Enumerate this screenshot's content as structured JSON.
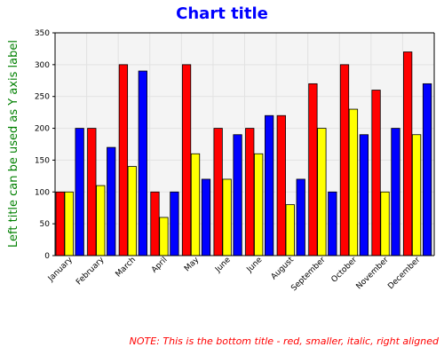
{
  "chart_data": {
    "type": "bar",
    "title": "Chart title",
    "ylabel": "Left title can be used as Y axis label",
    "bottom_title": "NOTE: This is the bottom title - red, smaller, italic, right aligned",
    "categories": [
      "January",
      "February",
      "March",
      "April",
      "May",
      "June",
      "June",
      "August",
      "September",
      "October",
      "November",
      "December"
    ],
    "series": [
      {
        "color": "#ff0000",
        "values": [
          100,
          200,
          300,
          100,
          300,
          200,
          200,
          220,
          270,
          300,
          260,
          320
        ]
      },
      {
        "color": "#ffff00",
        "values": [
          100,
          110,
          140,
          60,
          160,
          120,
          160,
          80,
          200,
          230,
          100,
          190
        ]
      },
      {
        "color": "#0000ff",
        "values": [
          200,
          170,
          290,
          100,
          120,
          190,
          220,
          120,
          100,
          190,
          200,
          270
        ]
      }
    ],
    "ylim": [
      0,
      350
    ],
    "yticks": [
      "0",
      "50",
      "100",
      "150",
      "200",
      "250",
      "300",
      "350"
    ],
    "grid": true,
    "legend": "none",
    "colors": {
      "title": "#0000ff",
      "ylabel": "#008000",
      "bottom_title": "#ff0000",
      "plot_background": "#f4f4f4",
      "grid": "#e2e2e2"
    }
  }
}
